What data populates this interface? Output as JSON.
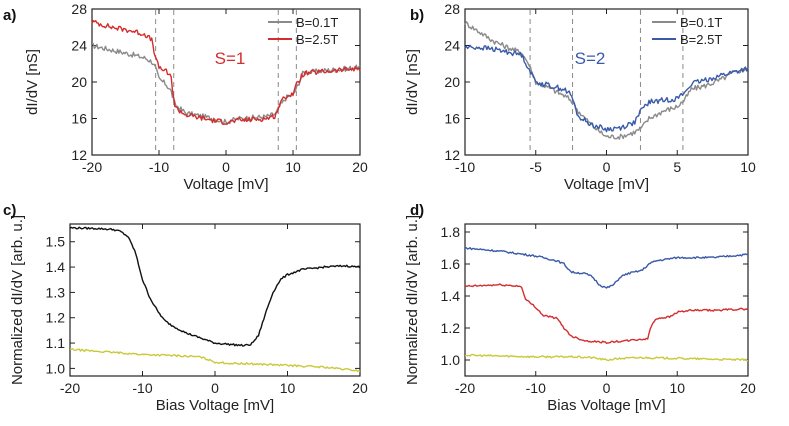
{
  "chart_data": [
    {
      "id": "a",
      "type": "line",
      "panel_label": "a)",
      "xlabel": "Voltage [mV]",
      "ylabel": "dI/dV [nS]",
      "xlim": [
        -20,
        20
      ],
      "ylim": [
        12,
        28
      ],
      "xticks": [
        -20,
        -10,
        0,
        10,
        20
      ],
      "yticks": [
        12,
        16,
        20,
        24,
        28
      ],
      "annotation": "S=1",
      "annotation_color": "#d42d2d",
      "vlines": [
        -10.5,
        -7.8,
        7.8,
        10.5
      ],
      "legend_position": "top-right",
      "series": [
        {
          "name": "B=0.1T",
          "color": "#8a8a8a",
          "x": [
            -20,
            -17,
            -14,
            -12,
            -11,
            -10.5,
            -10,
            -9,
            -8.2,
            -7.6,
            -6,
            -4,
            -2,
            0,
            2,
            4,
            6,
            7.4,
            8,
            9,
            10,
            10.6,
            11.5,
            14,
            17,
            20
          ],
          "y": [
            24.0,
            23.5,
            23.0,
            22.6,
            22.2,
            21.5,
            20.3,
            19.8,
            19.0,
            17.5,
            16.6,
            16.3,
            16.0,
            15.6,
            16.0,
            16.1,
            16.2,
            16.5,
            17.3,
            18.3,
            18.6,
            19.4,
            21.0,
            21.2,
            21.4,
            21.6
          ]
        },
        {
          "name": "B=2.5T",
          "color": "#d42d2d",
          "x": [
            -20,
            -17,
            -14,
            -12,
            -11,
            -10.5,
            -10,
            -9,
            -8.2,
            -7.6,
            -6,
            -4,
            -2,
            0,
            2,
            4,
            6,
            7.4,
            8,
            9,
            10,
            10.6,
            11.5,
            14,
            17,
            20
          ],
          "y": [
            26.6,
            26.0,
            25.6,
            25.2,
            24.5,
            22.5,
            21.6,
            21.2,
            20.5,
            17.2,
            16.4,
            16.1,
            15.8,
            15.6,
            15.8,
            15.9,
            16.0,
            16.3,
            17.6,
            18.5,
            18.7,
            19.8,
            20.9,
            21.1,
            21.3,
            21.5
          ]
        }
      ]
    },
    {
      "id": "b",
      "type": "line",
      "panel_label": "b)",
      "xlabel": "Voltage [mV]",
      "ylabel": "dI/dV [nS]",
      "xlim": [
        -10,
        10
      ],
      "ylim": [
        12,
        28
      ],
      "xticks": [
        -10,
        -5,
        0,
        5,
        10
      ],
      "yticks": [
        12,
        16,
        20,
        24,
        28
      ],
      "annotation": "S=2",
      "annotation_color": "#3a5aa8",
      "vlines": [
        -5.4,
        -2.4,
        2.4,
        5.4
      ],
      "legend_position": "top-right",
      "series": [
        {
          "name": "B=0.1T",
          "color": "#8a8a8a",
          "x": [
            -10,
            -9,
            -8,
            -7,
            -6,
            -5.5,
            -5,
            -4,
            -3,
            -2.5,
            -2,
            -1,
            0,
            1,
            2,
            2.5,
            3,
            4,
            5,
            5.5,
            6,
            7,
            8,
            9,
            10
          ],
          "y": [
            26.5,
            25.5,
            24.5,
            23.8,
            23.2,
            22.0,
            20.0,
            19.3,
            18.5,
            18.0,
            16.8,
            15.2,
            14.0,
            14.0,
            14.5,
            15.0,
            16.0,
            16.8,
            17.3,
            18.0,
            19.2,
            19.6,
            20.2,
            21.0,
            21.6
          ]
        },
        {
          "name": "B=2.5T",
          "color": "#3a5aa8",
          "x": [
            -10,
            -9,
            -8,
            -7,
            -6,
            -5.5,
            -5,
            -4,
            -3,
            -2.5,
            -2,
            -1,
            0,
            1,
            2,
            2.5,
            3,
            4,
            5,
            5.5,
            6,
            7,
            8,
            9,
            10
          ],
          "y": [
            23.8,
            23.8,
            23.6,
            23.3,
            23.0,
            21.5,
            20.0,
            19.6,
            19.2,
            18.6,
            16.2,
            15.3,
            14.8,
            15.0,
            15.6,
            17.0,
            17.8,
            18.0,
            18.2,
            18.8,
            19.8,
            20.2,
            20.7,
            21.1,
            21.5
          ]
        }
      ]
    },
    {
      "id": "c",
      "type": "line",
      "panel_label": "c)",
      "xlabel": "Bias Voltage [mV]",
      "ylabel": "Normalized dI/dV [arb. u.]",
      "xlim": [
        -20,
        20
      ],
      "ylim": [
        0.97,
        1.57
      ],
      "xticks": [
        -20,
        -10,
        0,
        10,
        20
      ],
      "yticks": [
        1.0,
        1.1,
        1.2,
        1.3,
        1.4,
        1.5
      ],
      "series": [
        {
          "name": "black",
          "color": "#111111",
          "x": [
            -20,
            -16,
            -14,
            -13,
            -12,
            -11,
            -10,
            -9,
            -8,
            -7,
            -6,
            -4,
            -2,
            0,
            2,
            4,
            5,
            6,
            7,
            8,
            9,
            10,
            12,
            15,
            18,
            20
          ],
          "y": [
            1.555,
            1.552,
            1.548,
            1.54,
            1.52,
            1.46,
            1.35,
            1.28,
            1.23,
            1.19,
            1.17,
            1.14,
            1.12,
            1.1,
            1.095,
            1.09,
            1.095,
            1.13,
            1.22,
            1.3,
            1.35,
            1.37,
            1.39,
            1.4,
            1.405,
            1.4
          ]
        },
        {
          "name": "yellow",
          "color": "#c9c93a",
          "x": [
            -20,
            -15,
            -10,
            -5,
            -2,
            0,
            2,
            5,
            10,
            15,
            20
          ],
          "y": [
            1.075,
            1.065,
            1.055,
            1.05,
            1.045,
            1.025,
            1.02,
            1.018,
            1.012,
            1.005,
            0.99
          ]
        }
      ]
    },
    {
      "id": "d",
      "type": "line",
      "panel_label": "d)",
      "xlabel": "Bias Voltage [mV]",
      "ylabel": "Normalized dI/dV [arb. u.]",
      "xlim": [
        -20,
        20
      ],
      "ylim": [
        0.9,
        1.85
      ],
      "xticks": [
        -20,
        -10,
        0,
        10,
        20
      ],
      "yticks": [
        1.0,
        1.2,
        1.4,
        1.6,
        1.8
      ],
      "series": [
        {
          "name": "blue",
          "color": "#3a5aa8",
          "x": [
            -20,
            -15,
            -10,
            -7,
            -6,
            -5,
            -3,
            -2,
            -1,
            0,
            1,
            2,
            3,
            5,
            6,
            7,
            10,
            15,
            20
          ],
          "y": [
            1.7,
            1.68,
            1.65,
            1.62,
            1.6,
            1.55,
            1.54,
            1.52,
            1.47,
            1.45,
            1.47,
            1.52,
            1.54,
            1.56,
            1.6,
            1.62,
            1.64,
            1.64,
            1.66
          ]
        },
        {
          "name": "red",
          "color": "#d42d2d",
          "x": [
            -20,
            -15,
            -12,
            -11.5,
            -10,
            -9,
            -7,
            -6,
            -5,
            -3,
            0,
            3,
            5,
            5.8,
            6.2,
            7,
            9,
            10,
            12,
            15,
            20
          ],
          "y": [
            1.46,
            1.47,
            1.46,
            1.38,
            1.33,
            1.28,
            1.26,
            1.2,
            1.15,
            1.12,
            1.11,
            1.12,
            1.13,
            1.13,
            1.2,
            1.26,
            1.27,
            1.3,
            1.31,
            1.31,
            1.32
          ]
        },
        {
          "name": "yellow",
          "color": "#c9c93a",
          "x": [
            -20,
            -15,
            -10,
            -5,
            -2,
            0,
            2,
            5,
            10,
            15,
            20
          ],
          "y": [
            1.03,
            1.025,
            1.02,
            1.02,
            1.015,
            1.0,
            1.01,
            1.015,
            1.01,
            1.005,
            1.0
          ]
        }
      ]
    }
  ]
}
